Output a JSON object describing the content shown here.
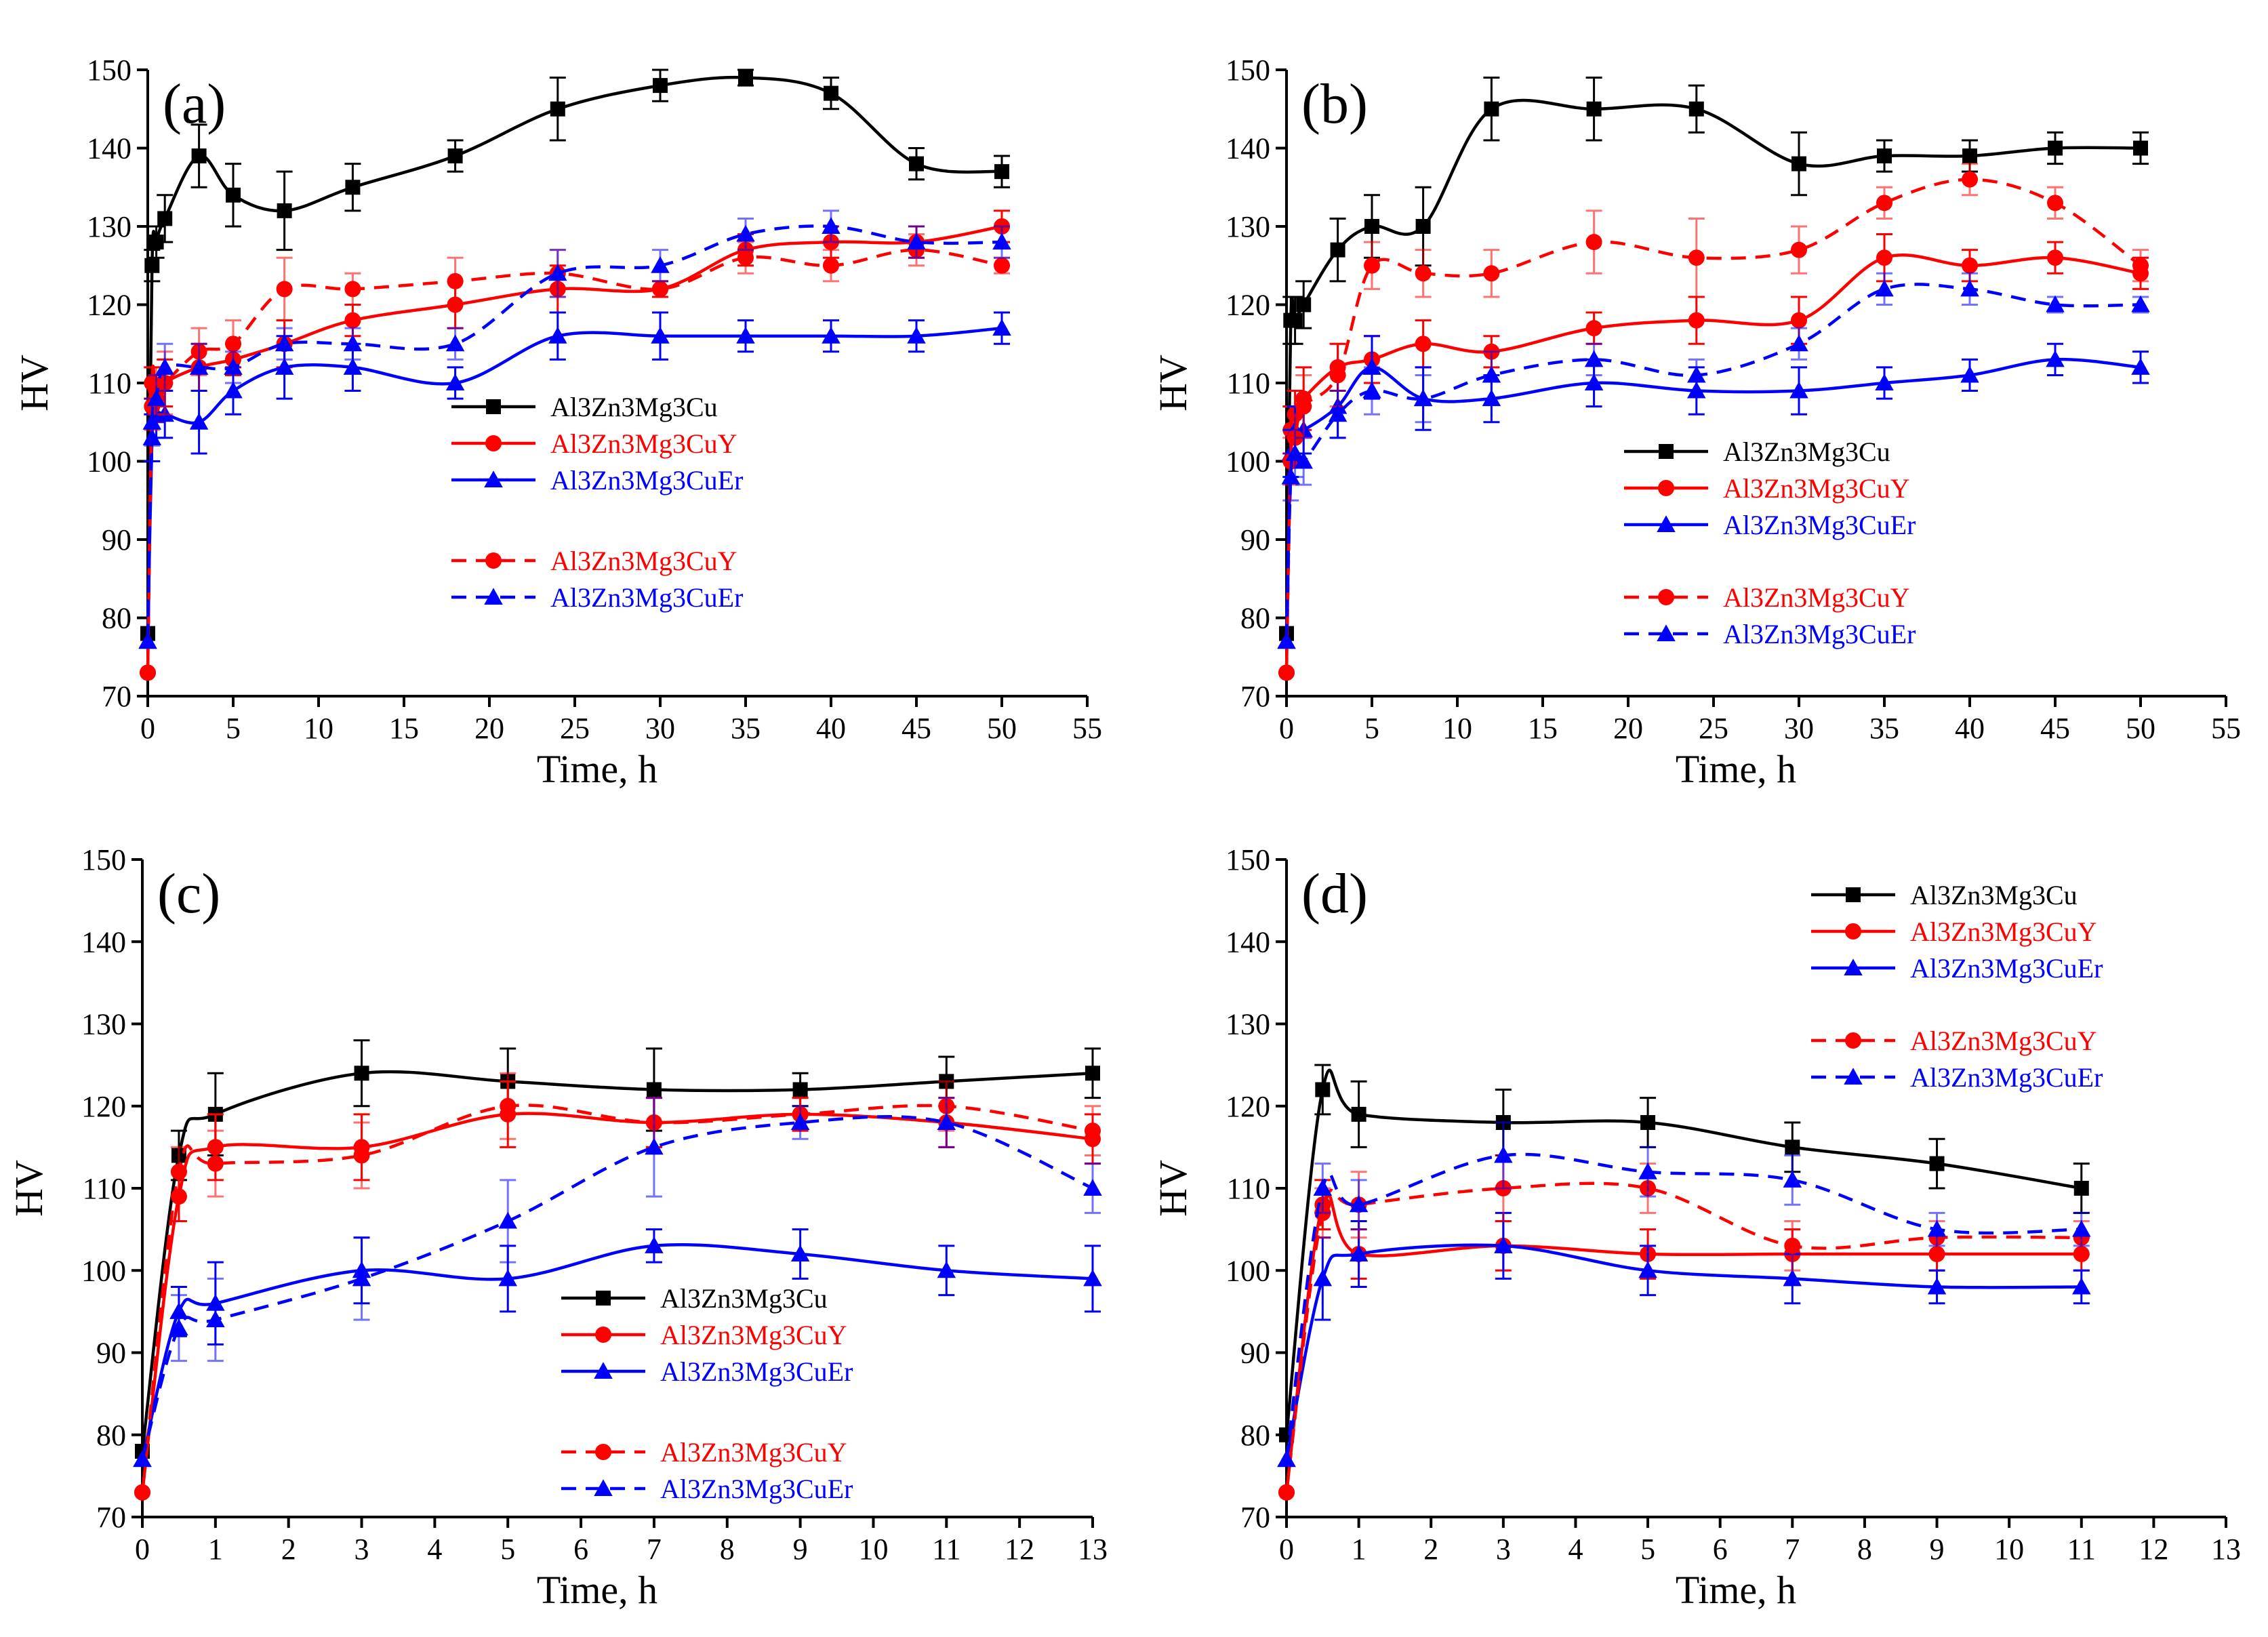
{
  "figure": {
    "y_label": "HV",
    "x_label": "Time, h"
  },
  "legend_entries": [
    {
      "name": "Al3Zn3Mg3Cu",
      "color": "#000000",
      "marker": "square",
      "dash": false
    },
    {
      "name": "Al3Zn3Mg3CuY",
      "color": "#ff0000",
      "marker": "circle",
      "dash": false
    },
    {
      "name": "Al3Zn3Mg3CuEr",
      "color": "#0000ff",
      "marker": "triangle",
      "dash": false
    },
    {
      "name": "Al3Zn3Mg3CuY",
      "color": "#ff0000",
      "marker": "circle",
      "dash": true
    },
    {
      "name": "Al3Zn3Mg3CuEr",
      "color": "#0000ff",
      "marker": "triangle",
      "dash": true
    }
  ],
  "chart_data": [
    {
      "type": "line",
      "panel_label": "(a)",
      "xlabel": "Time, h",
      "ylabel": "HV",
      "xlim": [
        0,
        55
      ],
      "ylim": [
        70,
        150
      ],
      "x_ticks": [
        0,
        5,
        10,
        15,
        20,
        25,
        30,
        35,
        40,
        45,
        50,
        55
      ],
      "y_ticks": [
        70,
        80,
        90,
        100,
        110,
        120,
        130,
        140,
        150
      ],
      "legend_position": "center-right",
      "series": [
        {
          "name": "Al3Zn3Mg3Cu",
          "color": "#000000",
          "marker": "square",
          "dashed": false,
          "x": [
            0,
            0.25,
            0.5,
            1,
            3,
            5,
            8,
            12,
            18,
            24,
            30,
            35,
            40,
            45,
            50
          ],
          "y": [
            78,
            125,
            128,
            131,
            139,
            134,
            132,
            135,
            139,
            145,
            148,
            149,
            147,
            138,
            137
          ],
          "err": [
            0,
            2,
            2,
            3,
            4,
            4,
            5,
            3,
            2,
            4,
            2,
            1,
            2,
            2,
            2
          ]
        },
        {
          "name": "Al3Zn3Mg3CuY",
          "color": "#ff0000",
          "marker": "circle",
          "dashed": false,
          "x": [
            0,
            0.25,
            0.5,
            1,
            3,
            5,
            8,
            12,
            18,
            24,
            30,
            35,
            40,
            45,
            50
          ],
          "y": [
            73,
            110,
            108,
            110,
            112,
            113,
            115,
            118,
            120,
            122,
            122,
            127,
            128,
            128,
            130
          ],
          "err": [
            0,
            2,
            3,
            3,
            3,
            2,
            3,
            2,
            3,
            3,
            1,
            2,
            2,
            2,
            2
          ]
        },
        {
          "name": "Al3Zn3Mg3CuEr",
          "color": "#0000ff",
          "marker": "triangle",
          "dashed": false,
          "x": [
            0,
            0.25,
            0.5,
            1,
            3,
            5,
            8,
            12,
            18,
            24,
            30,
            35,
            40,
            45,
            50
          ],
          "y": [
            77,
            103,
            106,
            106,
            105,
            109,
            112,
            112,
            110,
            116,
            116,
            116,
            116,
            116,
            117
          ],
          "err": [
            0,
            3,
            3,
            3,
            4,
            3,
            4,
            3,
            2,
            3,
            3,
            2,
            2,
            2,
            2
          ]
        },
        {
          "name": "Al3Zn3Mg3CuY",
          "color": "#ff0000",
          "marker": "circle",
          "dashed": true,
          "x": [
            0,
            0.25,
            0.5,
            1,
            3,
            5,
            8,
            12,
            18,
            24,
            30,
            35,
            40,
            45,
            50
          ],
          "y": [
            73,
            107,
            109,
            110,
            114,
            115,
            122,
            122,
            123,
            124,
            122,
            126,
            125,
            127,
            125
          ],
          "err": [
            0,
            3,
            3,
            4,
            3,
            3,
            4,
            2,
            3,
            3,
            1,
            2,
            2,
            2,
            1
          ]
        },
        {
          "name": "Al3Zn3Mg3CuEr",
          "color": "#0000ff",
          "marker": "triangle",
          "dashed": true,
          "x": [
            0,
            0.25,
            0.5,
            1,
            3,
            5,
            8,
            12,
            18,
            24,
            30,
            35,
            40,
            45,
            50
          ],
          "y": [
            77,
            105,
            108,
            112,
            112,
            112,
            115,
            115,
            115,
            124,
            125,
            129,
            130,
            128,
            128
          ],
          "err": [
            0,
            3,
            3,
            3,
            3,
            2,
            2,
            2,
            2,
            3,
            2,
            2,
            2,
            2,
            2
          ]
        }
      ]
    },
    {
      "type": "line",
      "panel_label": "(b)",
      "xlabel": "Time, h",
      "ylabel": "HV",
      "xlim": [
        0,
        55
      ],
      "ylim": [
        70,
        150
      ],
      "x_ticks": [
        0,
        5,
        10,
        15,
        20,
        25,
        30,
        35,
        40,
        45,
        50,
        55
      ],
      "y_ticks": [
        70,
        80,
        90,
        100,
        110,
        120,
        130,
        140,
        150
      ],
      "legend_position": "center-right",
      "series": [
        {
          "name": "Al3Zn3Mg3Cu",
          "color": "#000000",
          "marker": "square",
          "dashed": false,
          "x": [
            0,
            0.25,
            0.5,
            1,
            3,
            5,
            8,
            12,
            18,
            24,
            30,
            35,
            40,
            45,
            50
          ],
          "y": [
            78,
            118,
            118,
            120,
            127,
            130,
            130,
            145,
            145,
            145,
            138,
            139,
            139,
            140,
            140
          ],
          "err": [
            0,
            3,
            3,
            3,
            4,
            4,
            5,
            4,
            4,
            3,
            4,
            2,
            2,
            2,
            2
          ]
        },
        {
          "name": "Al3Zn3Mg3CuY",
          "color": "#ff0000",
          "marker": "circle",
          "dashed": false,
          "x": [
            0,
            0.25,
            0.5,
            1,
            3,
            5,
            8,
            12,
            18,
            24,
            30,
            35,
            40,
            45,
            50
          ],
          "y": [
            73,
            104,
            106,
            108,
            112,
            113,
            115,
            114,
            117,
            118,
            118,
            126,
            125,
            126,
            124
          ],
          "err": [
            0,
            3,
            3,
            4,
            3,
            3,
            3,
            2,
            2,
            3,
            3,
            3,
            2,
            2,
            2
          ]
        },
        {
          "name": "Al3Zn3Mg3CuEr",
          "color": "#0000ff",
          "marker": "triangle",
          "dashed": false,
          "x": [
            0,
            0.25,
            0.5,
            1,
            3,
            5,
            8,
            12,
            18,
            24,
            30,
            35,
            40,
            45,
            50
          ],
          "y": [
            77,
            101,
            104,
            104,
            107,
            112,
            108,
            108,
            110,
            109,
            109,
            110,
            111,
            113,
            112
          ],
          "err": [
            0,
            3,
            3,
            3,
            4,
            4,
            4,
            3,
            3,
            3,
            3,
            2,
            2,
            2,
            2
          ]
        },
        {
          "name": "Al3Zn3Mg3CuY",
          "color": "#ff0000",
          "marker": "circle",
          "dashed": true,
          "x": [
            0,
            0.25,
            0.5,
            1,
            3,
            5,
            8,
            12,
            18,
            24,
            30,
            35,
            40,
            45,
            50
          ],
          "y": [
            73,
            100,
            103,
            107,
            111,
            125,
            124,
            124,
            128,
            126,
            127,
            133,
            136,
            133,
            125
          ],
          "err": [
            0,
            3,
            3,
            4,
            4,
            3,
            3,
            3,
            4,
            5,
            3,
            2,
            2,
            2,
            2
          ]
        },
        {
          "name": "Al3Zn3Mg3CuEr",
          "color": "#0000ff",
          "marker": "triangle",
          "dashed": true,
          "x": [
            0,
            0.25,
            0.5,
            1,
            3,
            5,
            8,
            12,
            18,
            24,
            30,
            35,
            40,
            45,
            50
          ],
          "y": [
            77,
            98,
            101,
            100,
            106,
            109,
            108,
            111,
            113,
            111,
            115,
            122,
            122,
            120,
            120
          ],
          "err": [
            0,
            3,
            3,
            3,
            3,
            3,
            3,
            3,
            2,
            2,
            2,
            2,
            2,
            1,
            1
          ]
        }
      ]
    },
    {
      "type": "line",
      "panel_label": "(c)",
      "xlabel": "Time, h",
      "ylabel": "HV",
      "xlim": [
        0,
        13
      ],
      "ylim": [
        70,
        150
      ],
      "x_ticks": [
        0,
        1,
        2,
        3,
        4,
        5,
        6,
        7,
        8,
        9,
        10,
        11,
        12,
        13
      ],
      "y_ticks": [
        70,
        80,
        90,
        100,
        110,
        120,
        130,
        140,
        150
      ],
      "legend_position": "bottom-center",
      "series": [
        {
          "name": "Al3Zn3Mg3Cu",
          "color": "#000000",
          "marker": "square",
          "dashed": false,
          "x": [
            0,
            0.5,
            1,
            3,
            5,
            7,
            9,
            11,
            13
          ],
          "y": [
            78,
            114,
            119,
            124,
            123,
            122,
            122,
            123,
            124
          ],
          "err": [
            0,
            3,
            5,
            4,
            4,
            5,
            2,
            3,
            3
          ]
        },
        {
          "name": "Al3Zn3Mg3CuY",
          "color": "#ff0000",
          "marker": "circle",
          "dashed": false,
          "x": [
            0,
            0.5,
            1,
            3,
            5,
            7,
            9,
            11,
            13
          ],
          "y": [
            73,
            109,
            115,
            115,
            119,
            118,
            119,
            118,
            116
          ],
          "err": [
            0,
            3,
            4,
            4,
            4,
            3,
            2,
            3,
            3
          ]
        },
        {
          "name": "Al3Zn3Mg3CuEr",
          "color": "#0000ff",
          "marker": "triangle",
          "dashed": false,
          "x": [
            0,
            0.5,
            1,
            3,
            5,
            7,
            9,
            11,
            13
          ],
          "y": [
            77,
            95,
            96,
            100,
            99,
            103,
            102,
            100,
            99
          ],
          "err": [
            0,
            3,
            5,
            4,
            4,
            2,
            3,
            3,
            4
          ]
        },
        {
          "name": "Al3Zn3Mg3CuY",
          "color": "#ff0000",
          "marker": "circle",
          "dashed": true,
          "x": [
            0,
            0.5,
            1,
            3,
            5,
            7,
            9,
            11,
            13
          ],
          "y": [
            73,
            112,
            113,
            114,
            120,
            118,
            119,
            120,
            117
          ],
          "err": [
            0,
            3,
            4,
            4,
            4,
            3,
            2,
            3,
            3
          ]
        },
        {
          "name": "Al3Zn3Mg3CuEr",
          "color": "#0000ff",
          "marker": "triangle",
          "dashed": true,
          "x": [
            0,
            0.5,
            1,
            3,
            5,
            7,
            9,
            11,
            13
          ],
          "y": [
            77,
            93,
            94,
            99,
            106,
            115,
            118,
            118,
            110
          ],
          "err": [
            0,
            4,
            5,
            5,
            5,
            6,
            2,
            3,
            3
          ]
        }
      ]
    },
    {
      "type": "line",
      "panel_label": "(d)",
      "xlabel": "Time, h",
      "ylabel": "HV",
      "xlim": [
        0,
        13
      ],
      "ylim": [
        70,
        150
      ],
      "x_ticks": [
        0,
        1,
        2,
        3,
        4,
        5,
        6,
        7,
        8,
        9,
        10,
        11,
        12,
        13
      ],
      "y_ticks": [
        70,
        80,
        90,
        100,
        110,
        120,
        130,
        140,
        150
      ],
      "legend_position": "top-right",
      "series": [
        {
          "name": "Al3Zn3Mg3Cu",
          "color": "#000000",
          "marker": "square",
          "dashed": false,
          "x": [
            0,
            0.5,
            1,
            3,
            5,
            7,
            9,
            11
          ],
          "y": [
            80,
            122,
            119,
            118,
            118,
            115,
            113,
            110
          ],
          "err": [
            0,
            3,
            4,
            4,
            3,
            3,
            3,
            3
          ]
        },
        {
          "name": "Al3Zn3Mg3CuY",
          "color": "#ff0000",
          "marker": "circle",
          "dashed": false,
          "x": [
            0,
            0.5,
            1,
            3,
            5,
            7,
            9,
            11
          ],
          "y": [
            73,
            108,
            102,
            103,
            102,
            102,
            102,
            102
          ],
          "err": [
            0,
            3,
            3,
            3,
            3,
            3,
            2,
            2
          ]
        },
        {
          "name": "Al3Zn3Mg3CuEr",
          "color": "#0000ff",
          "marker": "triangle",
          "dashed": false,
          "x": [
            0,
            0.5,
            1,
            3,
            5,
            7,
            9,
            11
          ],
          "y": [
            77,
            99,
            102,
            103,
            100,
            99,
            98,
            98
          ],
          "err": [
            0,
            5,
            4,
            4,
            3,
            3,
            2,
            2
          ]
        },
        {
          "name": "Al3Zn3Mg3CuY",
          "color": "#ff0000",
          "marker": "circle",
          "dashed": true,
          "x": [
            0,
            0.5,
            1,
            3,
            5,
            7,
            9,
            11
          ],
          "y": [
            73,
            107,
            108,
            110,
            110,
            103,
            104,
            104
          ],
          "err": [
            0,
            3,
            4,
            4,
            3,
            3,
            2,
            2
          ]
        },
        {
          "name": "Al3Zn3Mg3CuEr",
          "color": "#0000ff",
          "marker": "triangle",
          "dashed": true,
          "x": [
            0,
            0.5,
            1,
            3,
            5,
            7,
            9,
            11
          ],
          "y": [
            77,
            110,
            108,
            114,
            112,
            111,
            105,
            105
          ],
          "err": [
            0,
            3,
            3,
            4,
            3,
            3,
            2,
            2
          ]
        }
      ]
    }
  ]
}
